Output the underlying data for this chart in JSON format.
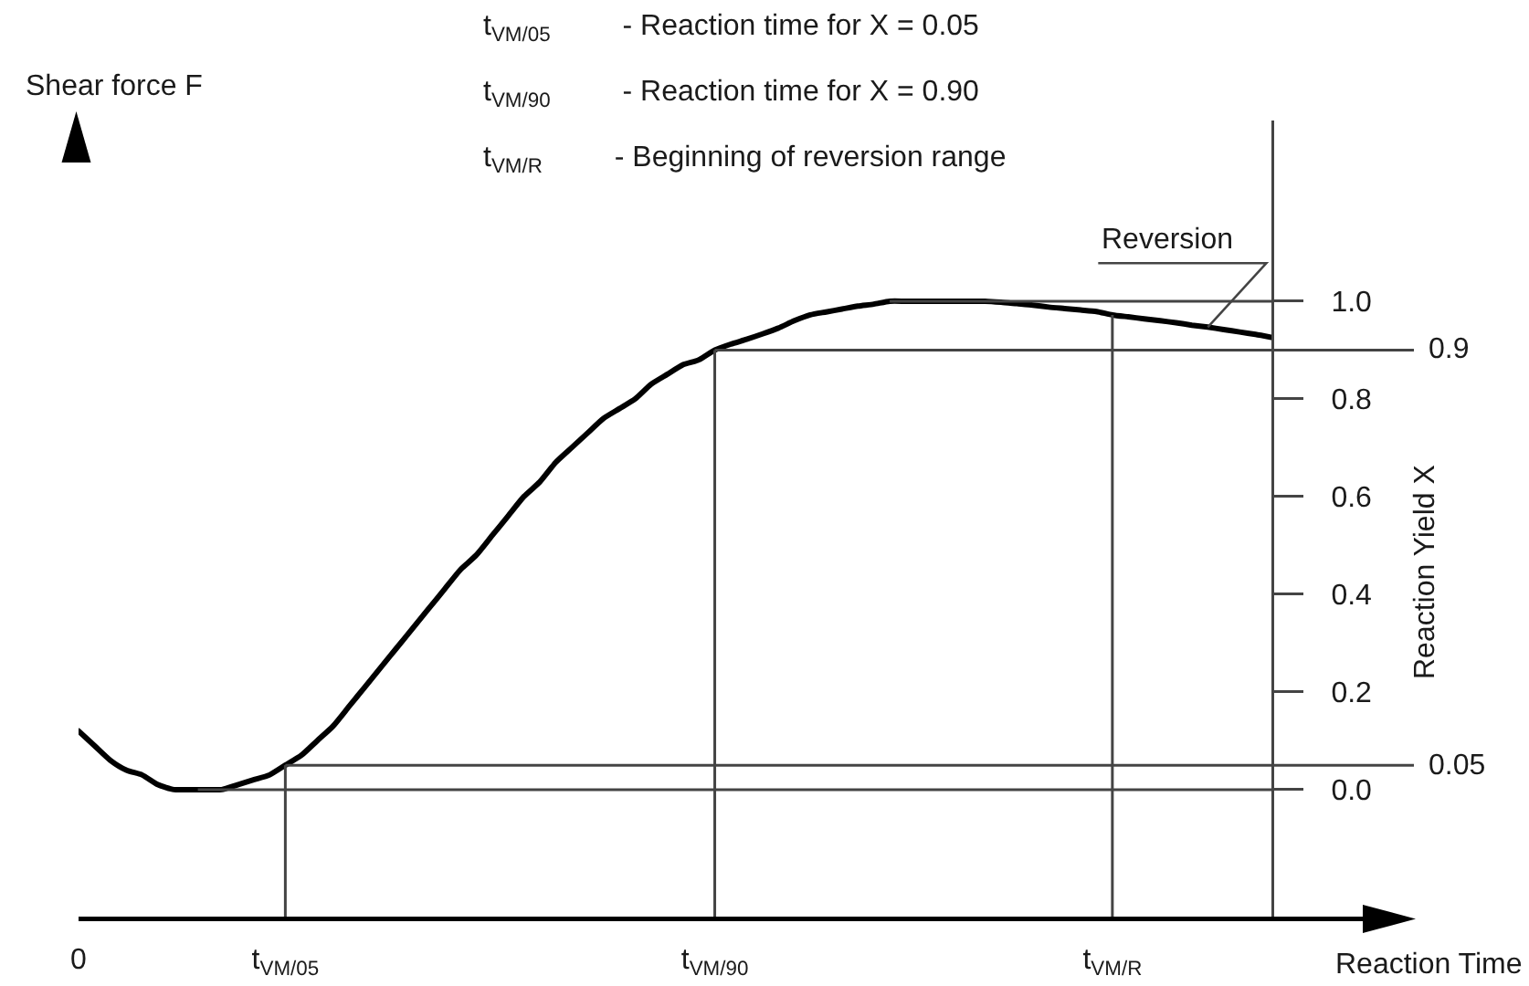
{
  "chart_data": {
    "type": "line",
    "xlabel": "Reaction Time",
    "ylabel": "Reaction Yield X",
    "y2label": "Shear force F",
    "annotations": [
      "t$_{VM/05}$ - Reaction time for X = 0.05",
      "t$_{VM/90}$ - Reaction time for X = 0.90",
      "t$_{VM/R}$ - Beginning of reversion range",
      {
        "text": "Reversion",
        "y": 0.947
      }
    ],
    "categories": [
      "0",
      null,
      null,
      null,
      null,
      null,
      null,
      null,
      null,
      null,
      null,
      null,
      null,
      "t$_{VM/05}$",
      null,
      null,
      null,
      null,
      null,
      null,
      null,
      null,
      null,
      null,
      null,
      null,
      null,
      null,
      null,
      null,
      null,
      null,
      null,
      null,
      null,
      null,
      null,
      null,
      null,
      null,
      "t$_{VM/90}$",
      null,
      null,
      null,
      null,
      null,
      null,
      null,
      null,
      null,
      null,
      null,
      null,
      null,
      null,
      null,
      null,
      null,
      null,
      null,
      null,
      null,
      null,
      null,
      null,
      "t$_{VM/R}$",
      null,
      null,
      null,
      null,
      null,
      null,
      null,
      null,
      null,
      null
    ],
    "series": [
      {
        "color": "#000000",
        "values": [
          0.12,
          0.09,
          0.06,
          0.04,
          0.03,
          0.01,
          0.0,
          0.0,
          0.0,
          0.0,
          0.01,
          0.02,
          0.03,
          0.05,
          0.07,
          0.1,
          0.13,
          0.17,
          0.21,
          0.25,
          0.29,
          0.33,
          0.37,
          0.41,
          0.45,
          0.48,
          0.52,
          0.56,
          0.6,
          0.63,
          0.67,
          0.7,
          0.73,
          0.76,
          0.78,
          0.8,
          0.83,
          0.85,
          0.87,
          0.88,
          0.9,
          0.912,
          0.922,
          0.933,
          0.945,
          0.96,
          0.972,
          0.978,
          0.984,
          0.99,
          0.994,
          1.0,
          1.0,
          1.0,
          1.0,
          1.0,
          1.0,
          1.0,
          0.998,
          0.995,
          0.992,
          0.988,
          0.985,
          0.982,
          0.979,
          0.972,
          0.968,
          0.964,
          0.96,
          0.956,
          0.951,
          0.947,
          0.942,
          0.937,
          0.932,
          0.926
        ]
      }
    ],
    "ylim": [
      -0.26,
      1.37
    ],
    "yticks": [
      {
        "value": 0,
        "label": "0.0"
      },
      0.2,
      0.4,
      0.6,
      0.8,
      {
        "value": 1,
        "label": "1.0"
      }
    ],
    "ref_lines": [
      {
        "axis": "y",
        "value": 1,
        "color": "#444444"
      },
      {
        "axis": "y",
        "value": 0.9,
        "label": "0.9",
        "color": "#444444"
      },
      {
        "axis": "y",
        "value": 0.05,
        "label": "0.05",
        "color": "#444444"
      },
      {
        "axis": "y",
        "value": 0,
        "color": "#444444"
      },
      {
        "axis": "x",
        "value": "t$_{VM/05}$",
        "color": "#444444"
      },
      {
        "axis": "x",
        "value": "t$_{VM/90}$",
        "color": "#444444"
      },
      {
        "axis": "x",
        "value": "t$_{VM/R}$",
        "color": "#444444"
      }
    ]
  }
}
